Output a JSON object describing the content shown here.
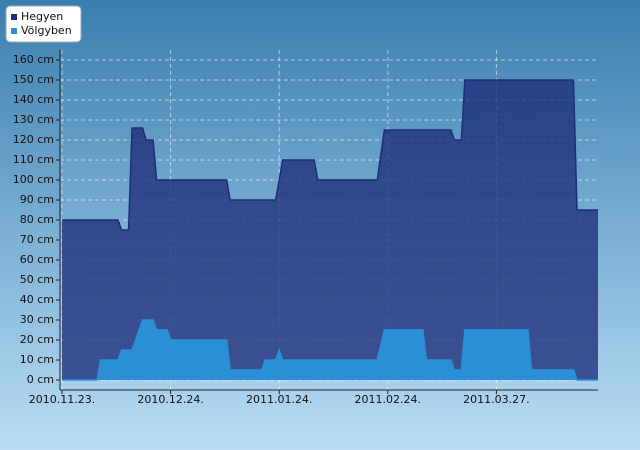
{
  "chart_data": {
    "type": "area",
    "x": [
      "2010.11.23.",
      "2010.12.03.",
      "2010.12.04.",
      "2010.12.09.",
      "2010.12.10.",
      "2010.12.12.",
      "2010.12.13.",
      "2010.12.16.",
      "2010.12.17.",
      "2010.12.19.",
      "2010.12.20.",
      "2010.12.23.",
      "2010.12.24.",
      "2011.01.09.",
      "2011.01.10.",
      "2011.01.19.",
      "2011.01.20.",
      "2011.01.23.",
      "2011.01.24.",
      "2011.01.25.",
      "2011.02.03.",
      "2011.02.04.",
      "2011.02.21.",
      "2011.02.23.",
      "2011.03.06.",
      "2011.03.07.",
      "2011.03.14.",
      "2011.03.15.",
      "2011.03.17.",
      "2011.03.18.",
      "2011.04.05.",
      "2011.04.06.",
      "2011.04.18.",
      "2011.04.19.",
      "2011.04.25."
    ],
    "series": [
      {
        "name": "Hegyen",
        "color": "#1e2d78",
        "values": [
          80,
          80,
          80,
          80,
          75,
          75,
          126,
          126,
          120,
          120,
          100,
          100,
          100,
          100,
          90,
          90,
          90,
          90,
          100,
          110,
          110,
          100,
          100,
          125,
          125,
          125,
          125,
          120,
          120,
          150,
          150,
          150,
          150,
          85,
          85
        ]
      },
      {
        "name": "Völgyben",
        "color": "#2a8fd4",
        "values": [
          0,
          0,
          10,
          10,
          15,
          15,
          15,
          30,
          30,
          30,
          25,
          25,
          20,
          20,
          5,
          5,
          10,
          10,
          15,
          10,
          10,
          10,
          10,
          25,
          25,
          10,
          10,
          5,
          5,
          25,
          25,
          5,
          5,
          0,
          0
        ]
      }
    ],
    "xlim": [
      "2010.11.23.",
      "2011.04.25."
    ],
    "xticks": [
      "2010.11.23.",
      "2010.12.24.",
      "2011.01.24.",
      "2011.02.24.",
      "2011.03.27."
    ],
    "ylim": [
      -5,
      165
    ],
    "yticks": [
      {
        "value": 0,
        "label": "0 cm"
      },
      {
        "value": 10,
        "label": "10 cm"
      },
      {
        "value": 20,
        "label": "20 cm"
      },
      {
        "value": 30,
        "label": "30 cm"
      },
      {
        "value": 40,
        "label": "40 cm"
      },
      {
        "value": 50,
        "label": "50 cm"
      },
      {
        "value": 60,
        "label": "60 cm"
      },
      {
        "value": 70,
        "label": "70 cm"
      },
      {
        "value": 80,
        "label": "80 cm"
      },
      {
        "value": 90,
        "label": "90 cm"
      },
      {
        "value": 100,
        "label": "100 cm"
      },
      {
        "value": 110,
        "label": "110 cm"
      },
      {
        "value": 120,
        "label": "120 cm"
      },
      {
        "value": 130,
        "label": "130 cm"
      },
      {
        "value": 140,
        "label": "140 cm"
      },
      {
        "value": 150,
        "label": "150 cm"
      },
      {
        "value": 160,
        "label": "160 cm"
      }
    ],
    "grid": true,
    "legend": "top-left"
  }
}
